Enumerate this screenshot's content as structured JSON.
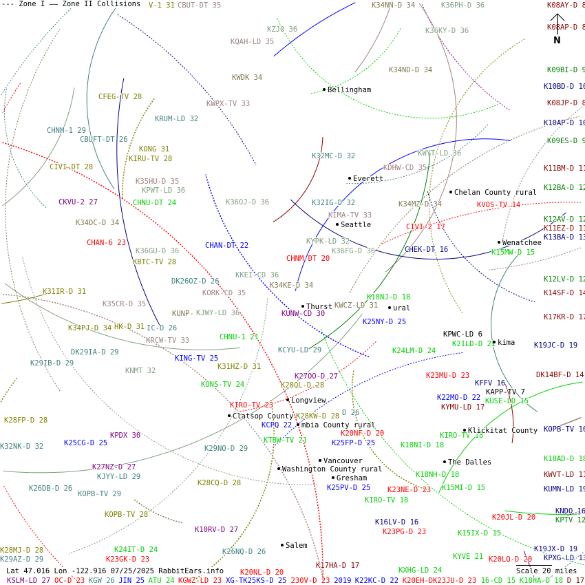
{
  "legend": {
    "zone1": "--- Zone I",
    "zone2": "—— Zone II Collisions"
  },
  "compass": {
    "label": "N"
  },
  "status": {
    "text": "Lat 47.016 Lon -122.916 07/25/2025 RabbitEars.info"
  },
  "scale": {
    "label": "Scale 20 miles"
  },
  "colors": {
    "red": "#ff0000",
    "darkred": "#8b0000",
    "blue": "#0000ff",
    "navy": "#000080",
    "green": "#00d000",
    "darkgreen": "#008000",
    "olive": "#808000",
    "teal": "#408080",
    "mauve": "#a08080",
    "graygreen": "#80a080",
    "olivegray": "#807850",
    "purple": "#800080",
    "black": "#000000"
  },
  "stations": [
    {
      "text": "V-1 31",
      "color": "olive"
    },
    {
      "text": "CBUT-DT 35",
      "color": "mauve"
    },
    {
      "text": "KZJO 36",
      "color": "graygreen"
    },
    {
      "text": "KQAH-LD 35",
      "color": "mauve"
    },
    {
      "text": "KWDK 34",
      "color": "olivegray"
    },
    {
      "text": "CFEG-TV 28",
      "color": "olive"
    },
    {
      "text": "KWPX-TV 33",
      "color": "mauve"
    },
    {
      "text": "KRUM-LD 32",
      "color": "teal"
    },
    {
      "text": "CHNM-1 29",
      "color": "teal"
    },
    {
      "text": "CBUFT-DT 26",
      "color": "teal"
    },
    {
      "text": "KONG 31",
      "color": "olive"
    },
    {
      "text": "KIRU-TV 28",
      "color": "olive"
    },
    {
      "text": "CIVI-DT 28",
      "color": "olive"
    },
    {
      "text": "K35HU-D 35",
      "color": "mauve"
    },
    {
      "text": "KPWT-LD 36",
      "color": "graygreen"
    },
    {
      "text": "CKVU-2 27",
      "color": "purple"
    },
    {
      "text": "CHNU-DT 24",
      "color": "green"
    },
    {
      "text": "K36OJ-D 36",
      "color": "graygreen"
    },
    {
      "text": "K34NN-D 34",
      "color": "olivegray"
    },
    {
      "text": "K36PH-D 36",
      "color": "graygreen"
    },
    {
      "text": "K08AY-D 8",
      "color": "darkred"
    },
    {
      "text": "K36KY-D 36",
      "color": "graygreen"
    },
    {
      "text": "K08AP-D 8",
      "color": "darkred"
    },
    {
      "text": "K34ND-D 34",
      "color": "olivegray"
    },
    {
      "text": "K09BI-D 9",
      "color": "darkgreen"
    },
    {
      "text": "K10BD-D 10",
      "color": "navy"
    },
    {
      "text": "K08JP-D 8",
      "color": "darkred"
    },
    {
      "text": "K10AP-D 10",
      "color": "navy"
    },
    {
      "text": "K09ES-D 9",
      "color": "darkgreen"
    },
    {
      "text": "KWYT-LD 36",
      "color": "graygreen"
    },
    {
      "text": "K32MC-D 32",
      "color": "teal"
    },
    {
      "text": "KDHW-CD 35",
      "color": "mauve"
    },
    {
      "text": "K11BM-D 11",
      "color": "darkred"
    },
    {
      "text": "K12BA-D 12",
      "color": "darkgreen"
    },
    {
      "text": "K32IG-D 32",
      "color": "teal"
    },
    {
      "text": "K34MZ-D 34",
      "color": "olivegray"
    },
    {
      "text": "KVOS-TV 14",
      "color": "red"
    },
    {
      "text": "K34DC-D 34",
      "color": "olivegray"
    },
    {
      "text": "CHAN-6 23",
      "color": "red"
    },
    {
      "text": "CHAN-DT 22",
      "color": "blue"
    },
    {
      "text": "K36GU-D 36",
      "color": "graygreen"
    },
    {
      "text": "KBTC-TV 28",
      "color": "olive"
    },
    {
      "text": "DK26OZ-D 26",
      "color": "teal"
    },
    {
      "text": "KKEI-CD 36",
      "color": "graygreen"
    },
    {
      "text": "K34KE-D 34",
      "color": "olivegray"
    },
    {
      "text": "KORK-CD 35",
      "color": "mauve"
    },
    {
      "text": "K31IR-D 31",
      "color": "olive"
    },
    {
      "text": "K35CR-D 35",
      "color": "mauve"
    },
    {
      "text": "KUNP-",
      "color": "olivegray"
    },
    {
      "text": "KJWY-LD 36",
      "color": "graygreen"
    },
    {
      "text": "K34PJ-D 34",
      "color": "olive"
    },
    {
      "text": "HK-D 31",
      "color": "olive"
    },
    {
      "text": "IC-D 26",
      "color": "teal"
    },
    {
      "text": "KRCW-TV 33",
      "color": "mauve"
    },
    {
      "text": "CHNU-1 21",
      "color": "green"
    },
    {
      "text": "DK29IA-D 29",
      "color": "teal"
    },
    {
      "text": "KING-TV 25",
      "color": "blue"
    },
    {
      "text": "K29IB-D 29",
      "color": "teal"
    },
    {
      "text": "K31HZ-D 31",
      "color": "olive"
    },
    {
      "text": "KNMT 32",
      "color": "graygreen"
    },
    {
      "text": "KUNS-TV 24",
      "color": "green"
    },
    {
      "text": "CHNM-DT 20",
      "color": "red"
    },
    {
      "text": "KYPK-LD 32",
      "color": "graygreen"
    },
    {
      "text": "K36FG-D 36",
      "color": "graygreen"
    },
    {
      "text": "KIMA-TV 33",
      "color": "mauve"
    },
    {
      "text": "CIVI-2 17",
      "color": "red"
    },
    {
      "text": "KUNW-CD 30",
      "color": "purple"
    },
    {
      "text": "KWCZ-LD 31",
      "color": "olivegray"
    },
    {
      "text": "K18NJ-D 18",
      "color": "green"
    },
    {
      "text": "CHEK-DT 16",
      "color": "navy"
    },
    {
      "text": "K15MW-D 15",
      "color": "green"
    },
    {
      "text": "K12AV-D 12",
      "color": "darkgreen"
    },
    {
      "text": "K11EZ-D 11",
      "color": "darkred"
    },
    {
      "text": "K13BA-D 13",
      "color": "navy"
    },
    {
      "text": "K12LV-D 12",
      "color": "darkgreen"
    },
    {
      "text": "K14SF-D 14",
      "color": "darkred"
    },
    {
      "text": "K17KR-D 17",
      "color": "darkred"
    },
    {
      "text": "K25NY-D 25",
      "color": "blue"
    },
    {
      "text": "KPWC-LD 6",
      "color": "black"
    },
    {
      "text": "K21LD-D 21",
      "color": "green"
    },
    {
      "text": "K19JC-D 19",
      "color": "navy"
    },
    {
      "text": "K24LM-D 24",
      "color": "green"
    },
    {
      "text": "KCYU-LD 29",
      "color": "teal"
    },
    {
      "text": "K23MU-D 23",
      "color": "red"
    },
    {
      "text": "DK14BF-D 14",
      "color": "darkred"
    },
    {
      "text": "KFFV 16",
      "color": "navy"
    },
    {
      "text": "KAPP-TV 7",
      "color": "black"
    },
    {
      "text": "K27OO-D 27",
      "color": "purple"
    },
    {
      "text": "K28QL-D 28",
      "color": "olive"
    },
    {
      "text": "K22MO-D 22",
      "color": "blue"
    },
    {
      "text": "KYMU-LD 17",
      "color": "darkred"
    },
    {
      "text": "KUSE-LD 15",
      "color": "green"
    },
    {
      "text": "KIRO-TV 23",
      "color": "red"
    },
    {
      "text": "KCPQ 22",
      "color": "blue"
    },
    {
      "text": "K28KW-D 28",
      "color": "olive"
    },
    {
      "text": "D 26",
      "color": "teal"
    },
    {
      "text": "K20NF-D 20",
      "color": "red"
    },
    {
      "text": "K25FP-D 25",
      "color": "blue"
    },
    {
      "text": "KTBW-TV 21",
      "color": "green"
    },
    {
      "text": "K18NI-D 18",
      "color": "green"
    },
    {
      "text": "KIRO-TV 18",
      "color": "green"
    },
    {
      "text": "KOPB-TV 10",
      "color": "navy"
    },
    {
      "text": "K29NO-D 29",
      "color": "teal"
    },
    {
      "text": "K28FP-D 28",
      "color": "olive"
    },
    {
      "text": "K32NK-D 32",
      "color": "teal"
    },
    {
      "text": "K25CG-D 25",
      "color": "blue"
    },
    {
      "text": "KPDX 30",
      "color": "purple"
    },
    {
      "text": "K27NZ-D 27",
      "color": "purple"
    },
    {
      "text": "KJYY-LD 29",
      "color": "teal"
    },
    {
      "text": "K18AD-D 18",
      "color": "green"
    },
    {
      "text": "K18NH-D 18",
      "color": "green"
    },
    {
      "text": "KWVT-LD 11",
      "color": "darkred"
    },
    {
      "text": "K28CQ-D 28",
      "color": "olive"
    },
    {
      "text": "K26DB-D 26",
      "color": "teal"
    },
    {
      "text": "K25PV-D 25",
      "color": "blue"
    },
    {
      "text": "K23NE-D 23",
      "color": "red"
    },
    {
      "text": "K15MI-D 15",
      "color": "green"
    },
    {
      "text": "KUMN-LD 19",
      "color": "navy"
    },
    {
      "text": "KIRO-TV 18",
      "color": "green"
    },
    {
      "text": "KOPB-TV 29",
      "color": "teal"
    },
    {
      "text": "KOPB-TV 28",
      "color": "olive"
    },
    {
      "text": "KNDO 16",
      "color": "navy"
    },
    {
      "text": "KPTV 12",
      "color": "darkgreen"
    },
    {
      "text": "K20JL-D 20",
      "color": "red"
    },
    {
      "text": "K16LV-D 16",
      "color": "navy"
    },
    {
      "text": "K10RV-D 27",
      "color": "purple"
    },
    {
      "text": "K23PG-D 23",
      "color": "red"
    },
    {
      "text": "K15IX-D 15",
      "color": "green"
    },
    {
      "text": "KYVE 21",
      "color": "green"
    },
    {
      "text": "K20LQ-D 20",
      "color": "red"
    },
    {
      "text": "K19JX-D 19",
      "color": "navy"
    },
    {
      "text": "KPXG-LD 13",
      "color": "navy"
    },
    {
      "text": "K28MJ-D 28",
      "color": "olive"
    },
    {
      "text": "K26NQ-D 26",
      "color": "teal"
    },
    {
      "text": "K24IT-D 24",
      "color": "green"
    },
    {
      "text": "K17HA-D 17",
      "color": "darkred"
    },
    {
      "text": "K29AZ-D 29",
      "color": "teal"
    },
    {
      "text": "K23GK-D 23",
      "color": "red"
    },
    {
      "text": "KXHG-LD 24",
      "color": "green"
    },
    {
      "text": "K20NL-D 20",
      "color": "red"
    },
    {
      "text": "KSLM-LD 27",
      "color": "purple"
    },
    {
      "text": "OC-D 23",
      "color": "red"
    },
    {
      "text": "KGW 26",
      "color": "teal"
    },
    {
      "text": "JIN 25",
      "color": "blue"
    },
    {
      "text": "ATU 24",
      "color": "green"
    },
    {
      "text": "KGWZ-LD 23",
      "color": "red"
    },
    {
      "text": "XG-TK25KS-D 25",
      "color": "blue"
    },
    {
      "text": "230V-D 23",
      "color": "red"
    },
    {
      "text": "2019",
      "color": "blue"
    },
    {
      "text": "K22KC-D 22",
      "color": "blue"
    },
    {
      "text": "K20EH-DK23JU-D 23",
      "color": "red"
    },
    {
      "text": "16-CD 15",
      "color": "green"
    },
    {
      "text": "K18HA-D 18",
      "color": "green"
    },
    {
      "text": "D 17",
      "color": "darkred"
    }
  ],
  "cities": [
    "Bellingham",
    "Everett",
    "Chelan County rural",
    "Seattle",
    "Wenatchee",
    "Thurst",
    "ural",
    "kima",
    "Longview",
    "Clatsop County",
    "mbia County rural",
    "Klickitat County",
    "Vancouver",
    "The Dalles",
    "Washington County rural",
    "Gresham",
    "Salem"
  ]
}
